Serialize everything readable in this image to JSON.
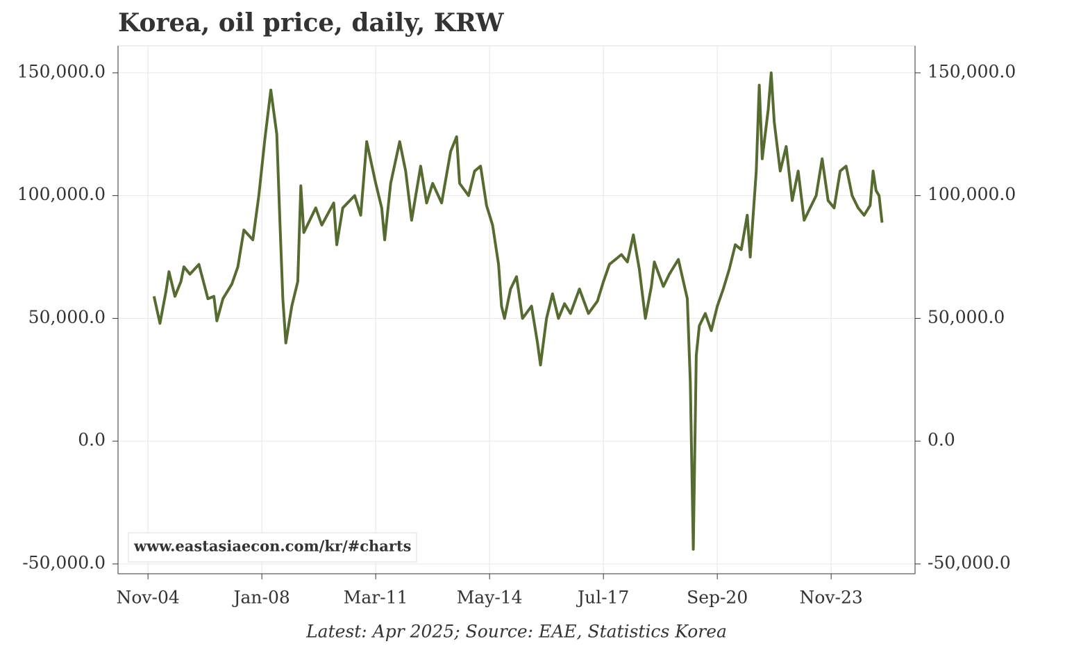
{
  "chart_data": {
    "type": "line",
    "title": "Korea, oil price, daily, KRW",
    "note": "Latest: Apr 2025; Source: EAE, Statistics Korea",
    "watermark": "www.eastasiaecon.com/kr/#charts",
    "grid": true,
    "xlim": [
      "2004-01",
      "2026-03"
    ],
    "xticks": [
      {
        "value": "2004-11",
        "label": "Nov-04"
      },
      {
        "value": "2008-01",
        "label": "Jan-08"
      },
      {
        "value": "2011-03",
        "label": "Mar-11"
      },
      {
        "value": "2014-05",
        "label": "May-14"
      },
      {
        "value": "2017-07",
        "label": "Jul-17"
      },
      {
        "value": "2020-09",
        "label": "Sep-20"
      },
      {
        "value": "2023-11",
        "label": "Nov-23"
      }
    ],
    "ylim": [
      -54000,
      161000
    ],
    "yticks": [
      {
        "value": -50000,
        "label": "-50,000.0"
      },
      {
        "value": 0,
        "label": "0.0"
      },
      {
        "value": 50000,
        "label": "50,000.0"
      },
      {
        "value": 100000,
        "label": "100,000.0"
      },
      {
        "value": 150000,
        "label": "150,000.0"
      }
    ],
    "x": [
      "2005-01",
      "2005-03",
      "2005-05",
      "2005-06",
      "2005-08",
      "2005-10",
      "2005-11",
      "2006-01",
      "2006-04",
      "2006-07",
      "2006-09",
      "2006-10",
      "2006-12",
      "2007-03",
      "2007-05",
      "2007-07",
      "2007-10",
      "2007-12",
      "2008-02",
      "2008-04",
      "2008-06",
      "2008-07",
      "2008-08",
      "2008-09",
      "2008-11",
      "2009-01",
      "2009-02",
      "2009-03",
      "2009-07",
      "2009-09",
      "2010-01",
      "2010-02",
      "2010-04",
      "2010-08",
      "2010-10",
      "2010-12",
      "2011-03",
      "2011-05",
      "2011-06",
      "2011-08",
      "2011-11",
      "2012-01",
      "2012-03",
      "2012-06",
      "2012-08",
      "2012-10",
      "2013-01",
      "2013-04",
      "2013-06",
      "2013-07",
      "2013-10",
      "2013-12",
      "2014-02",
      "2014-04",
      "2014-06",
      "2014-08",
      "2014-09",
      "2014-10",
      "2014-12",
      "2015-02",
      "2015-04",
      "2015-07",
      "2015-09",
      "2015-10",
      "2015-12",
      "2016-02",
      "2016-04",
      "2016-06",
      "2016-08",
      "2016-11",
      "2017-02",
      "2017-05",
      "2017-07",
      "2017-09",
      "2018-01",
      "2018-03",
      "2018-05",
      "2018-07",
      "2018-09",
      "2018-11",
      "2018-12",
      "2019-03",
      "2019-05",
      "2019-08",
      "2019-11",
      "2019-12",
      "2020-01",
      "2020-02",
      "2020-03",
      "2020-05",
      "2020-07",
      "2020-09",
      "2020-11",
      "2021-01",
      "2021-03",
      "2021-05",
      "2021-07",
      "2021-08",
      "2021-10",
      "2021-11",
      "2021-12",
      "2022-02",
      "2022-03",
      "2022-04",
      "2022-06",
      "2022-08",
      "2022-10",
      "2022-12",
      "2023-02",
      "2023-04",
      "2023-06",
      "2023-08",
      "2023-10",
      "2023-12",
      "2024-02",
      "2024-04",
      "2024-06",
      "2024-08",
      "2024-10",
      "2024-12",
      "2025-01",
      "2025-02",
      "2025-03",
      "2025-04"
    ],
    "series": [
      {
        "name": "Oil price",
        "color": "#556b2f",
        "values": [
          59000,
          48000,
          61000,
          69000,
          59000,
          65000,
          71000,
          68000,
          72000,
          58000,
          59000,
          49000,
          58000,
          64000,
          71000,
          86000,
          82000,
          100000,
          123000,
          143000,
          125000,
          90000,
          58000,
          40000,
          55000,
          65000,
          104000,
          85000,
          95000,
          88000,
          97000,
          80000,
          95000,
          100000,
          92000,
          122000,
          105000,
          95000,
          82000,
          105000,
          122000,
          110000,
          90000,
          112000,
          97000,
          105000,
          97000,
          118000,
          124000,
          105000,
          100000,
          110000,
          112000,
          96000,
          88000,
          72000,
          55000,
          50000,
          62000,
          67000,
          50000,
          55000,
          40000,
          31000,
          50000,
          60000,
          50000,
          56000,
          52000,
          62000,
          52000,
          57000,
          65000,
          72000,
          76000,
          73000,
          84000,
          70000,
          50000,
          63000,
          73000,
          63000,
          68000,
          74000,
          58000,
          24000,
          -44000,
          35000,
          47000,
          52000,
          45000,
          55000,
          62000,
          70000,
          80000,
          78000,
          92000,
          75000,
          110000,
          145000,
          115000,
          135000,
          150000,
          130000,
          110000,
          120000,
          98000,
          110000,
          90000,
          95000,
          100000,
          115000,
          98000,
          95000,
          110000,
          112000,
          100000,
          95000,
          92000,
          96000,
          110000,
          102000,
          100000,
          89000
        ]
      }
    ]
  }
}
